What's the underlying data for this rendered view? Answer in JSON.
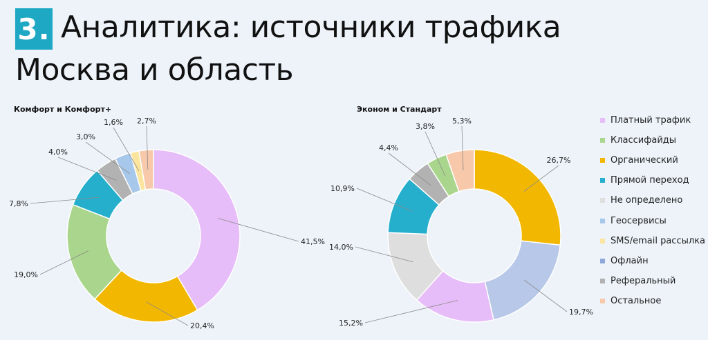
{
  "title": {
    "number": "3.",
    "line1": "Аналитика: источники трафика",
    "line2": "Москва и область"
  },
  "legend": [
    {
      "label": "Платный трафик",
      "color": "#e6bdf8"
    },
    {
      "label": "Классифайды",
      "color": "#a9d68c"
    },
    {
      "label": "Органический",
      "color": "#f2b700"
    },
    {
      "label": "Прямой переход",
      "color": "#25afcc"
    },
    {
      "label": "Не определено",
      "color": "#dedede"
    },
    {
      "label": "Геосервисы",
      "color": "#a7c8ea"
    },
    {
      "label": "SMS/email рассылка",
      "color": "#fbe59e"
    },
    {
      "label": "Офлайн",
      "color": "#8fa8dc"
    },
    {
      "label": "Реферальный",
      "color": "#b2b2b2"
    },
    {
      "label": "Остальное",
      "color": "#f7c8a9"
    }
  ],
  "chart_data": [
    {
      "type": "pie",
      "donut": true,
      "title": "Комфорт и Комфорт+",
      "slices": [
        {
          "name": "Платный трафик",
          "value": 41.5,
          "label": "41,5%",
          "color": "#e6bdf8"
        },
        {
          "name": "Органический",
          "value": 20.4,
          "label": "20,4%",
          "color": "#f2b700"
        },
        {
          "name": "Классифайды",
          "value": 19.0,
          "label": "19,0%",
          "color": "#a9d68c"
        },
        {
          "name": "Прямой переход",
          "value": 7.8,
          "label": "7,8%",
          "color": "#25afcc"
        },
        {
          "name": "Реферальный",
          "value": 4.0,
          "label": "4,0%",
          "color": "#b2b2b2"
        },
        {
          "name": "Геосервисы",
          "value": 3.0,
          "label": "3,0%",
          "color": "#a7c8ea"
        },
        {
          "name": "SMS/email рассылка",
          "value": 1.6,
          "label": "1,6%",
          "color": "#fbe59e"
        },
        {
          "name": "Остальное",
          "value": 2.7,
          "label": "2,7%",
          "color": "#f7c8a9"
        }
      ]
    },
    {
      "type": "pie",
      "donut": true,
      "title": "Эконом и Стандарт",
      "slices": [
        {
          "name": "Органический",
          "value": 26.7,
          "label": "26,7%",
          "color": "#f2b700"
        },
        {
          "name": "Офлайн",
          "value": 19.7,
          "label": "19,7%",
          "color": "#b8c8e8"
        },
        {
          "name": "Платный трафик",
          "value": 15.2,
          "label": "15,2%",
          "color": "#e6bdf8"
        },
        {
          "name": "Не определено",
          "value": 14.0,
          "label": "14,0%",
          "color": "#dedede"
        },
        {
          "name": "Прямой переход",
          "value": 10.9,
          "label": "10,9%",
          "color": "#25afcc"
        },
        {
          "name": "Реферальный",
          "value": 4.4,
          "label": "4,4%",
          "color": "#b2b2b2"
        },
        {
          "name": "Классифайды",
          "value": 3.8,
          "label": "3,8%",
          "color": "#a9d68c"
        },
        {
          "name": "Остальное",
          "value": 5.3,
          "label": "5,3%",
          "color": "#f7c8a9"
        }
      ]
    }
  ]
}
